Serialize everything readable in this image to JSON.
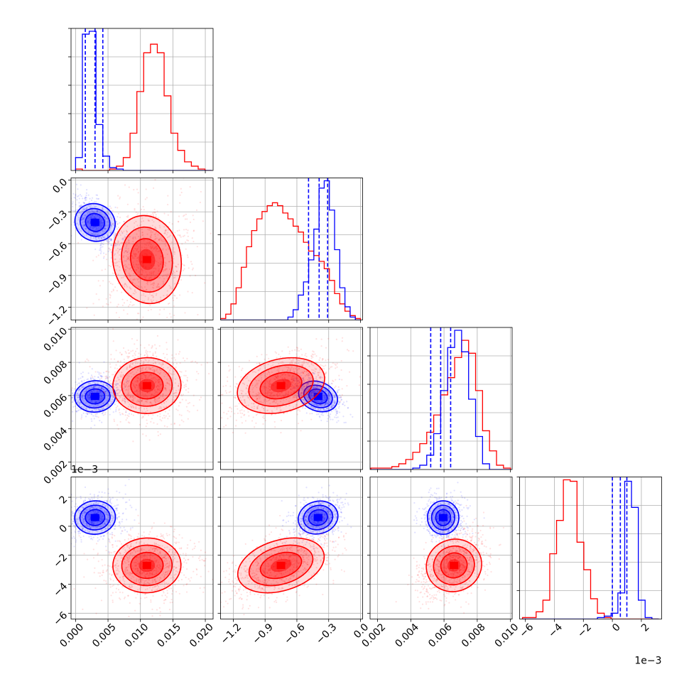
{
  "chart_data": {
    "type": "corner",
    "title": "",
    "parameters": [
      "",
      "",
      "",
      ""
    ],
    "grid": true,
    "colors": {
      "blue": "#0000ff",
      "red": "#ff0000"
    },
    "axes": [
      {
        "range": [
          -0.0007,
          0.0212
        ],
        "ticks": [
          0.0,
          0.005,
          0.01,
          0.015,
          0.02
        ],
        "tick_labels": [
          "0.000",
          "0.005",
          "0.010",
          "0.015",
          "0.020"
        ],
        "offset_label": ""
      },
      {
        "range": [
          -1.32,
          0.02
        ],
        "ticks": [
          -1.2,
          -0.9,
          -0.6,
          -0.3,
          0.0
        ],
        "tick_labels": [
          "−1.2",
          "−0.9",
          "−0.6",
          "−0.3",
          "0.0"
        ],
        "offset_label": ""
      },
      {
        "range": [
          0.00155,
          0.0101
        ],
        "ticks": [
          0.002,
          0.004,
          0.006,
          0.008,
          0.01
        ],
        "tick_labels": [
          "0.002",
          "0.004",
          "0.006",
          "0.008",
          "0.010"
        ],
        "offset_label": ""
      },
      {
        "range": [
          -6.4,
          3.4
        ],
        "ticks": [
          -6,
          -4,
          -2,
          0,
          2
        ],
        "tick_labels": [
          "−6",
          "−4",
          "−2",
          "0",
          "2"
        ],
        "offset_label": "1e−3"
      }
    ],
    "series": [
      {
        "color": "blue",
        "mean": [
          0.003,
          -0.4,
          0.00595,
          0.6
        ],
        "std": [
          0.0015,
          0.09,
          0.00045,
          0.55
        ],
        "quantiles": [
          [
            0.0015,
            0.003,
            0.0042
          ],
          [
            -0.49,
            -0.39,
            -0.31
          ],
          [
            0.0052,
            0.0058,
            0.0064
          ],
          [
            0.0,
            0.55,
            1.0
          ]
        ],
        "hist": [
          {
            "edges_range": [
              0.0,
              0.021
            ],
            "counts": [
              9,
              95,
              97,
              32,
              10,
              2,
              1,
              0,
              0,
              0,
              0,
              0,
              0,
              0,
              0,
              0,
              0,
              0,
              0,
              0
            ]
          },
          {
            "edges_range": [
              -1.32,
              0.0
            ],
            "counts": [
              0,
              0,
              0,
              0,
              0,
              0,
              0,
              0,
              0,
              0,
              0,
              0,
              0,
              2,
              7,
              17,
              26,
              41,
              62,
              90,
              95,
              75,
              48,
              22,
              9,
              2,
              0
            ]
          },
          {
            "edges_range": [
              0.0016,
              0.01
            ],
            "counts": [
              0,
              0,
              0,
              0,
              0,
              0,
              1,
              3,
              10,
              25,
              55,
              85,
              97,
              82,
              49,
              23,
              4,
              0,
              0,
              0
            ]
          },
          {
            "edges_range": [
              -6.2,
              3.2
            ],
            "counts": [
              0,
              0,
              0,
              0,
              0,
              0,
              0,
              0,
              0,
              0,
              0,
              1,
              2,
              4,
              18,
              95,
              77,
              13,
              1,
              0
            ]
          }
        ]
      },
      {
        "color": "red",
        "mean": [
          0.011,
          -0.75,
          0.0066,
          -2.7
        ],
        "std": [
          0.0025,
          0.2,
          0.0008,
          0.9
        ],
        "quantiles": null,
        "hist": [
          {
            "edges_range": [
              0.0,
              0.021
            ],
            "counts": [
              1,
              0,
              0,
              0,
              0,
              1,
              3,
              9,
              26,
              55,
              82,
              88,
              82,
              52,
              26,
              14,
              6,
              3,
              1,
              0
            ]
          },
          {
            "edges_range": [
              -1.32,
              0.0
            ],
            "counts": [
              1,
              4,
              11,
              22,
              36,
              50,
              61,
              69,
              74,
              78,
              80,
              78,
              73,
              69,
              64,
              60,
              53,
              47,
              44,
              40,
              35,
              27,
              18,
              11,
              6,
              3,
              1
            ]
          },
          {
            "edges_range": [
              0.0016,
              0.01
            ],
            "counts": [
              1,
              1,
              1,
              2,
              4,
              7,
              12,
              18,
              26,
              38,
              52,
              64,
              78,
              90,
              81,
              55,
              27,
              13,
              3,
              1
            ]
          },
          {
            "edges_range": [
              -6.2,
              3.2
            ],
            "counts": [
              1,
              1,
              5,
              13,
              45,
              68,
              96,
              95,
              53,
              34,
              14,
              4,
              1,
              0,
              0,
              0,
              0,
              0,
              0,
              0
            ]
          }
        ]
      }
    ]
  }
}
